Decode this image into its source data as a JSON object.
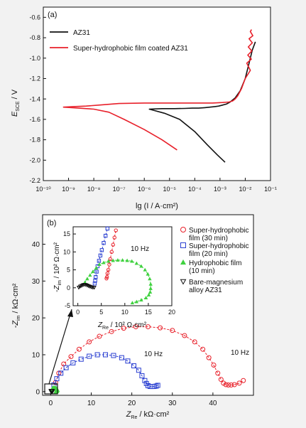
{
  "chart_data": [
    {
      "type": "line",
      "panel_label": "(a)",
      "xlabel": "lg (I / A·cm²)",
      "ylabel_main": "E",
      "ylabel_sub": "SCE",
      "ylabel_unit": " / V",
      "x_scale": "log10",
      "xlim": [
        -10,
        -1
      ],
      "ylim": [
        -2.2,
        -0.5
      ],
      "x_ticks": [
        -10,
        -9,
        -8,
        -7,
        -6,
        -5,
        -4,
        -3,
        -2,
        -1
      ],
      "x_tick_labels": [
        "10⁻¹⁰",
        "10⁻⁹",
        "10⁻⁸",
        "10⁻⁷",
        "10⁻⁶",
        "10⁻⁵",
        "10⁻⁴",
        "10⁻³",
        "10⁻²",
        "10⁻¹"
      ],
      "y_ticks": [
        -2.2,
        -2.0,
        -1.8,
        -1.6,
        -1.4,
        -1.2,
        -1.0,
        -0.8,
        -0.6
      ],
      "y_tick_labels": [
        "-2.2",
        "-2.0",
        "-1.8",
        "-1.6",
        "-1.4",
        "-1.2",
        "-1.0",
        "-0.8",
        "-0.6"
      ],
      "legend_position": "top-left",
      "series": [
        {
          "name": "AZ31",
          "color": "#111111",
          "x": [
            -1.6,
            -1.72,
            -1.85,
            -2.0,
            -2.2,
            -2.4,
            -2.6,
            -2.75,
            -2.9,
            -3.05,
            -3.2,
            -3.4,
            -3.6,
            -3.85,
            -4.1,
            -4.4,
            -4.8,
            -5.3,
            -5.8,
            -5.2,
            -4.6,
            -4.0,
            -3.5,
            -3.1,
            -2.8
          ],
          "y": [
            -0.84,
            -0.92,
            -1.05,
            -1.2,
            -1.32,
            -1.39,
            -1.43,
            -1.45,
            -1.46,
            -1.47,
            -1.475,
            -1.48,
            -1.485,
            -1.49,
            -1.49,
            -1.493,
            -1.495,
            -1.495,
            -1.5,
            -1.54,
            -1.6,
            -1.72,
            -1.85,
            -1.95,
            -2.02
          ]
        },
        {
          "name": "Super-hydrophobic film coated AZ31",
          "color": "#e8202a",
          "x": [
            -1.75,
            -1.8,
            -1.7,
            -1.85,
            -1.72,
            -1.88,
            -1.74,
            -1.9,
            -1.76,
            -1.94,
            -1.8,
            -2.0,
            -2.15,
            -2.3,
            -2.4,
            -2.5,
            -2.65,
            -2.9,
            -3.3,
            -4.0,
            -5.0,
            -6.0,
            -7.0,
            -7.8,
            -8.3,
            -8.8,
            -9.2,
            -8.6,
            -8.0,
            -7.4,
            -6.8,
            -6.0,
            -5.3,
            -4.7
          ],
          "y": [
            -0.72,
            -0.74,
            -0.78,
            -0.81,
            -0.85,
            -0.89,
            -0.93,
            -0.97,
            -1.01,
            -1.05,
            -1.12,
            -1.2,
            -1.3,
            -1.37,
            -1.4,
            -1.42,
            -1.43,
            -1.435,
            -1.44,
            -1.44,
            -1.44,
            -1.44,
            -1.445,
            -1.46,
            -1.47,
            -1.475,
            -1.48,
            -1.49,
            -1.5,
            -1.53,
            -1.6,
            -1.7,
            -1.8,
            -1.9
          ]
        }
      ]
    },
    {
      "type": "scatter",
      "panel_label": "(b)",
      "xlabel_main": "Z",
      "xlabel_sub": "Re",
      "xlabel_unit": " / kΩ·cm²",
      "ylabel_main": "-Z",
      "ylabel_sub": "im",
      "ylabel_unit": " / kΩ·cm²",
      "xlim": [
        -2,
        50
      ],
      "ylim": [
        -1,
        48
      ],
      "x_ticks": [
        0,
        10,
        20,
        30,
        40
      ],
      "y_ticks": [
        0,
        10,
        20,
        30,
        40
      ],
      "legend_position": "right",
      "annotations": [
        "10 Hz",
        "10 Hz"
      ],
      "series": [
        {
          "name": "Super-hydrophobic film (30 min)",
          "color": "#e8202a",
          "marker": "circle",
          "x": [
            1.2,
            2.0,
            3.2,
            5.0,
            7.0,
            9.5,
            12.0,
            15.0,
            18.0,
            21.0,
            24.0,
            27.0,
            30.0,
            33.0,
            35.5,
            37.5,
            39.0,
            40.2,
            41.2,
            42.0,
            42.6,
            43.2,
            43.8,
            44.5,
            45.3,
            46.5,
            47.5
          ],
          "y": [
            2.5,
            5.0,
            7.5,
            9.5,
            11.5,
            13.5,
            15.0,
            16.3,
            17.2,
            17.6,
            17.6,
            17.3,
            16.6,
            15.2,
            13.5,
            11.5,
            9.2,
            7.2,
            5.0,
            3.3,
            2.3,
            1.9,
            1.8,
            1.8,
            1.9,
            2.3,
            3.0
          ]
        },
        {
          "name": "Super-hydrophobic film (20 min)",
          "color": "#2a3fd1",
          "marker": "square",
          "x": [
            0.8,
            1.5,
            2.5,
            3.8,
            5.5,
            7.5,
            9.5,
            11.5,
            13.5,
            15.5,
            17.5,
            19.0,
            20.5,
            21.7,
            22.5,
            23.2,
            23.6,
            24.0,
            24.5,
            25.0,
            25.5,
            26.0,
            26.4
          ],
          "y": [
            1.8,
            3.5,
            5.0,
            6.5,
            7.8,
            8.8,
            9.6,
            10.0,
            10.0,
            9.8,
            9.2,
            8.3,
            7.0,
            5.8,
            4.3,
            3.0,
            2.2,
            1.6,
            1.4,
            1.4,
            1.4,
            1.5,
            1.7
          ]
        },
        {
          "name": "Hydrophobic film (10 min)",
          "color": "#3fd13f",
          "marker": "triangle",
          "x": [
            0.3,
            0.5,
            0.7,
            0.9,
            1.1,
            1.3,
            1.5,
            1.6,
            1.55,
            1.45,
            1.3,
            1.2
          ],
          "y": [
            0.5,
            0.9,
            1.0,
            1.0,
            0.95,
            0.85,
            0.7,
            0.5,
            0.3,
            0.15,
            0.0,
            -0.2
          ]
        },
        {
          "name": "Bare-magnesium alloy AZ31",
          "color": "#111111",
          "marker": "triangle-down",
          "x": [
            0.1,
            0.2,
            0.3,
            0.4
          ],
          "y": [
            0.1,
            0.15,
            0.12,
            0.05
          ]
        }
      ]
    },
    {
      "type": "scatter",
      "panel_label": "inset",
      "xlabel_main": "Z",
      "xlabel_sub": "Re",
      "xlabel_unit": " / 10² Ω·cm²",
      "ylabel_main": "-Z",
      "ylabel_sub": "im",
      "ylabel_unit": " / 10² Ω·cm²",
      "xlim": [
        -1,
        20
      ],
      "ylim": [
        -5,
        17
      ],
      "x_ticks": [
        0,
        5,
        10,
        15,
        20
      ],
      "y_ticks": [
        -5,
        0,
        5,
        10,
        15
      ],
      "annotations": [
        "10 Hz"
      ],
      "series": [
        {
          "name": "Super-hydrophobic film (30 min)",
          "color": "#e8202a",
          "marker": "circle",
          "x": [
            6.1,
            6.2,
            6.3,
            6.5,
            6.7,
            6.9,
            7.2,
            7.5,
            7.8,
            8.1
          ],
          "y": [
            2.6,
            3.0,
            4.0,
            5.0,
            6.5,
            8.0,
            10.0,
            12.0,
            14.0,
            16.0
          ]
        },
        {
          "name": "Super-hydrophobic film (20 min)",
          "color": "#2a3fd1",
          "marker": "square",
          "x": [
            3.6,
            3.7,
            3.8,
            4.0,
            4.2,
            4.5,
            4.8,
            5.1,
            5.5,
            5.9,
            6.3
          ],
          "y": [
            1.2,
            2.0,
            3.0,
            4.5,
            6.0,
            7.5,
            9.0,
            10.5,
            12.5,
            14.5,
            16.5
          ]
        },
        {
          "name": "Hydrophobic film (10 min)",
          "color": "#3fd13f",
          "marker": "triangle",
          "x": [
            1.5,
            2.0,
            2.6,
            3.2,
            3.9,
            4.6,
            5.5,
            6.5,
            7.5,
            8.5,
            9.5,
            10.5,
            11.5,
            12.5,
            13.5,
            14.3,
            14.9,
            15.3,
            15.5,
            15.5,
            15.4,
            15.1,
            14.5,
            13.5,
            12.5,
            11.6
          ],
          "y": [
            1.5,
            2.5,
            3.5,
            4.5,
            5.5,
            6.5,
            7.0,
            7.4,
            7.6,
            7.7,
            7.7,
            7.6,
            7.4,
            6.8,
            6.0,
            5.0,
            3.8,
            2.5,
            1.0,
            -0.2,
            -1.2,
            -2.0,
            -2.8,
            -3.4,
            -3.9,
            -4.2
          ]
        },
        {
          "name": "Bare-magnesium alloy AZ31",
          "color": "#111111",
          "marker": "triangle-down",
          "x": [
            0.2,
            0.5,
            0.8,
            1.1,
            1.4,
            1.7,
            2.0,
            2.3,
            2.6,
            2.9,
            3.2,
            3.5
          ],
          "y": [
            0.1,
            0.4,
            0.6,
            0.8,
            0.9,
            0.85,
            0.7,
            0.5,
            0.35,
            0.2,
            0.1,
            0.1
          ]
        }
      ]
    }
  ]
}
